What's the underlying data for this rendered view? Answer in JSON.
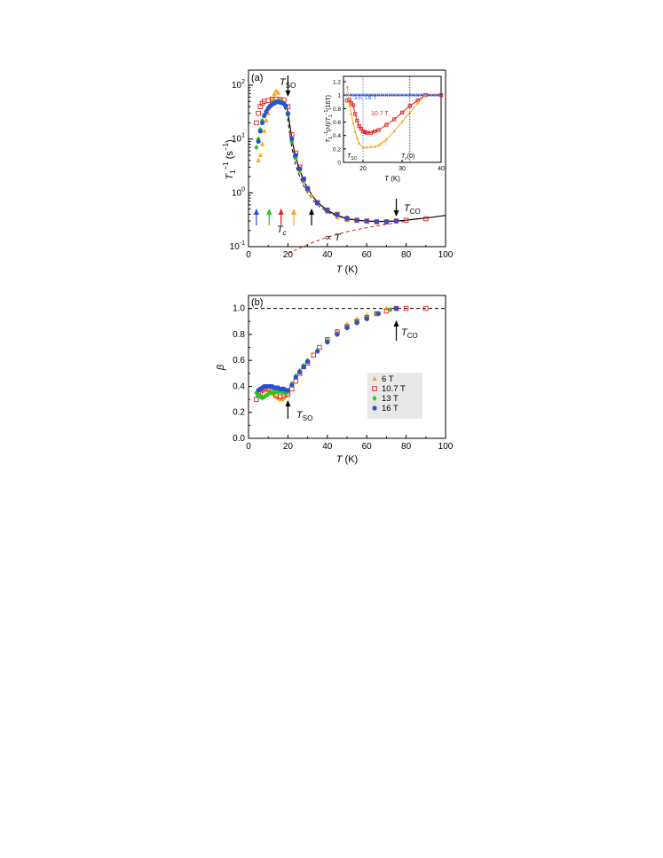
{
  "colors": {
    "6T": "#f5a623",
    "10.7T": "#e02020",
    "13T": "#22c81e",
    "16T": "#2a4fd6",
    "fit_curve": "#000000",
    "linear_term": "#e02020",
    "ref_line": "#000000"
  },
  "chart_data": [
    {
      "type": "scatter",
      "panel_label": "(a)",
      "xlabel": "T (K)",
      "ylabel": "T1−1 (s−1)",
      "xlim": [
        0,
        100
      ],
      "ylim": [
        0.1,
        100
      ],
      "yscale": "log",
      "x_ticks": [
        "0",
        "20",
        "40",
        "60",
        "80",
        "100"
      ],
      "y_ticks": [
        "10-1",
        "100",
        "101",
        "102"
      ],
      "annotations": {
        "tso": "TSO",
        "tco": "TCO",
        "tc": "Tc",
        "propto": "∝ T"
      },
      "series": [
        {
          "name": "6 T",
          "marker": "triangle",
          "color_key": "6T",
          "x": [
            5,
            6,
            7,
            8,
            9,
            10,
            11,
            12,
            13,
            14,
            15,
            16,
            17,
            18,
            20,
            22,
            24,
            26,
            28,
            30,
            32,
            35,
            40,
            45,
            50,
            55
          ],
          "y": [
            4,
            5,
            8,
            14,
            22,
            30,
            42,
            55,
            68,
            78,
            72,
            55,
            52,
            48,
            30,
            9,
            4.4,
            2.5,
            1.6,
            1.1,
            0.86,
            0.62,
            0.44,
            0.35,
            0.31,
            0.3
          ]
        },
        {
          "name": "10.7 T",
          "marker": "square-open",
          "color_key": "10.7T",
          "x": [
            4,
            5,
            6,
            7,
            8,
            10,
            12,
            14,
            16,
            18,
            20,
            22,
            24,
            26,
            28,
            30,
            35,
            40,
            45,
            50,
            55,
            60,
            65,
            70,
            75,
            80,
            90
          ],
          "y": [
            20,
            30,
            40,
            46,
            50,
            52,
            55,
            55,
            54,
            53,
            40,
            12,
            5.5,
            3,
            1.8,
            1.2,
            0.66,
            0.48,
            0.4,
            0.33,
            0.31,
            0.3,
            0.29,
            0.29,
            0.3,
            0.31,
            0.33
          ]
        },
        {
          "name": "13 T",
          "marker": "diamond",
          "color_key": "13T",
          "x": [
            4,
            5,
            6,
            7,
            8,
            9,
            10,
            11,
            12,
            13,
            14,
            15,
            16,
            17,
            18,
            19,
            20,
            22,
            24,
            26,
            28,
            30,
            35,
            40,
            45,
            50,
            55,
            60,
            65,
            70
          ],
          "y": [
            7,
            10,
            15,
            22,
            28,
            33,
            38,
            42,
            45,
            48,
            50,
            51,
            50,
            48,
            45,
            40,
            28,
            9,
            4.5,
            2.6,
            1.7,
            1.15,
            0.64,
            0.46,
            0.38,
            0.33,
            0.31,
            0.3,
            0.29,
            0.29
          ]
        },
        {
          "name": "16 T",
          "marker": "circle",
          "color_key": "16T",
          "x": [
            5,
            6,
            7,
            8,
            9,
            10,
            11,
            12,
            13,
            14,
            15,
            16,
            17,
            18,
            19,
            20,
            22,
            24,
            26,
            28,
            30,
            35,
            40,
            45,
            50,
            55,
            60,
            65,
            70,
            75
          ],
          "y": [
            9,
            14,
            20,
            27,
            32,
            37,
            41,
            44,
            46,
            48,
            49,
            48,
            47,
            45,
            41,
            30,
            10,
            5,
            2.8,
            1.8,
            1.2,
            0.65,
            0.47,
            0.39,
            0.34,
            0.31,
            0.3,
            0.29,
            0.29,
            0.3
          ]
        }
      ],
      "fit_curve": {
        "x": [
          14,
          16,
          18,
          19,
          20,
          21,
          22,
          23,
          24,
          26,
          28,
          30,
          33,
          36,
          40,
          45,
          50,
          55,
          60,
          65,
          70,
          75,
          80,
          85,
          90,
          95,
          100
        ],
        "y": [
          48,
          49,
          47,
          43,
          32,
          18,
          10,
          6.5,
          4.5,
          2.6,
          1.7,
          1.2,
          0.82,
          0.62,
          0.47,
          0.38,
          0.33,
          0.31,
          0.3,
          0.295,
          0.295,
          0.3,
          0.31,
          0.325,
          0.34,
          0.36,
          0.38
        ]
      },
      "dashed_fit": {
        "x": [
          18,
          19,
          20,
          21,
          22,
          23,
          24,
          26,
          28,
          30,
          33,
          36,
          40,
          45,
          50
        ],
        "y": [
          40,
          33,
          22,
          12,
          7,
          4.5,
          3.2,
          2,
          1.35,
          1.0,
          0.72,
          0.56,
          0.44,
          0.37,
          0.33
        ]
      },
      "linear_term": {
        "x": [
          20,
          30,
          40,
          50,
          60,
          70,
          80
        ],
        "y": [
          0.075,
          0.11,
          0.15,
          0.19,
          0.225,
          0.26,
          0.3
        ]
      },
      "arrows_tc": [
        {
          "x": 4,
          "color_key": "16T"
        },
        {
          "x": 10.5,
          "color_key": "13T"
        },
        {
          "x": 16.5,
          "color_key": "10.7T"
        },
        {
          "x": 23,
          "color_key": "6T"
        },
        {
          "x": 32,
          "color_key": "ref_line"
        }
      ],
      "inset": {
        "type": "line",
        "xlabel": "T (K)",
        "ylabel": "T1−1(H)/T1−1(16T)",
        "xlim": [
          15,
          40
        ],
        "ylim": [
          0,
          1.2
        ],
        "x_ticks": [
          "20",
          "30",
          "40"
        ],
        "y_ticks": [
          "0",
          "0.2",
          "0.4",
          "0.6",
          "0.8",
          "1",
          "1.2"
        ],
        "labels": {
          "13_16": "13, 16 T",
          "10_7": "10.7 T",
          "6": "6 T",
          "tso": "TSO",
          "tc0": "Tc(0)"
        },
        "vlines": [
          20,
          32
        ],
        "series": [
          {
            "name": "13, 16 T",
            "color_key": "16T",
            "x": [
              16,
              17,
              18,
              19,
              20,
              21,
              22,
              23,
              24,
              25,
              26,
              27,
              28,
              29,
              30,
              31,
              32,
              33,
              34,
              35,
              36,
              37,
              38,
              39,
              40
            ],
            "y": [
              1,
              1,
              1,
              1,
              1,
              1,
              1,
              1,
              1,
              1,
              1,
              1,
              1,
              1,
              1,
              1,
              1,
              1,
              1,
              1,
              1,
              1,
              1,
              1,
              1
            ]
          },
          {
            "name": "10.7 T",
            "color_key": "10.7T",
            "x": [
              16,
              16.5,
              17,
              17.5,
              18,
              18.5,
              19,
              19.5,
              20,
              20.5,
              21,
              22,
              23,
              24,
              26,
              28,
              30,
              32,
              34,
              36,
              40
            ],
            "y": [
              0.92,
              0.93,
              0.88,
              0.85,
              0.72,
              0.62,
              0.54,
              0.5,
              0.46,
              0.45,
              0.44,
              0.44,
              0.46,
              0.48,
              0.56,
              0.64,
              0.74,
              0.84,
              0.92,
              1.0,
              1.0
            ]
          },
          {
            "name": "6 T",
            "color_key": "6T",
            "x": [
              16,
              16.5,
              17,
              17.5,
              18,
              18.5,
              19,
              20,
              21,
              22,
              23,
              24,
              26,
              28,
              30,
              32,
              34,
              36
            ],
            "y": [
              1.12,
              0.85,
              0.72,
              0.58,
              0.46,
              0.36,
              0.28,
              0.22,
              0.22,
              0.23,
              0.23,
              0.25,
              0.34,
              0.46,
              0.6,
              0.74,
              0.88,
              1.0
            ]
          }
        ]
      }
    },
    {
      "type": "scatter",
      "panel_label": "(b)",
      "xlabel": "T (K)",
      "ylabel": "β",
      "xlim": [
        0,
        100
      ],
      "ylim": [
        0,
        1.1
      ],
      "x_ticks": [
        "0",
        "20",
        "40",
        "60",
        "80",
        "100"
      ],
      "y_ticks": [
        "0.0",
        "0.2",
        "0.4",
        "0.6",
        "0.8",
        "1.0"
      ],
      "annotations": {
        "tso": "TSO",
        "tco": "TCO"
      },
      "ref_line_y": 1.0,
      "series": [
        {
          "name": "6 T",
          "marker": "triangle",
          "color_key": "6T",
          "x": [
            5,
            6,
            7,
            8,
            9,
            10,
            11,
            12,
            13,
            14,
            15,
            16,
            17,
            18,
            19,
            20,
            22,
            24,
            26,
            28,
            30,
            35,
            40,
            45,
            50,
            55,
            60,
            70
          ],
          "y": [
            0.34,
            0.37,
            0.38,
            0.39,
            0.38,
            0.37,
            0.36,
            0.35,
            0.34,
            0.32,
            0.31,
            0.3,
            0.3,
            0.31,
            0.33,
            0.35,
            0.42,
            0.48,
            0.52,
            0.56,
            0.6,
            0.68,
            0.76,
            0.82,
            0.88,
            0.92,
            0.95,
            1.0
          ]
        },
        {
          "name": "10.7 T",
          "marker": "square-open",
          "color_key": "10.7T",
          "x": [
            4,
            5,
            6,
            7,
            8,
            10,
            12,
            14,
            16,
            18,
            20,
            22,
            24,
            26,
            28,
            30,
            33,
            36,
            40,
            45,
            50,
            55,
            60,
            65,
            70,
            75,
            80,
            90
          ],
          "y": [
            0.3,
            0.33,
            0.35,
            0.37,
            0.38,
            0.38,
            0.36,
            0.33,
            0.32,
            0.33,
            0.34,
            0.38,
            0.44,
            0.5,
            0.55,
            0.58,
            0.64,
            0.7,
            0.76,
            0.82,
            0.86,
            0.9,
            0.93,
            0.96,
            0.98,
            1.0,
            1.0,
            1.0
          ]
        },
        {
          "name": "13 T",
          "marker": "diamond",
          "color_key": "13T",
          "x": [
            4,
            5,
            6,
            7,
            8,
            9,
            10,
            11,
            12,
            13,
            14,
            15,
            16,
            17,
            18,
            19,
            20,
            22,
            24,
            26,
            28,
            30,
            35,
            40,
            45,
            50,
            55,
            60,
            65,
            72
          ],
          "y": [
            0.35,
            0.33,
            0.32,
            0.31,
            0.32,
            0.33,
            0.34,
            0.35,
            0.35,
            0.36,
            0.36,
            0.36,
            0.36,
            0.36,
            0.35,
            0.35,
            0.36,
            0.42,
            0.48,
            0.52,
            0.56,
            0.6,
            0.68,
            0.75,
            0.8,
            0.86,
            0.9,
            0.93,
            0.96,
            0.99
          ]
        },
        {
          "name": "16 T",
          "marker": "circle",
          "color_key": "16T",
          "x": [
            5,
            6,
            7,
            8,
            9,
            10,
            11,
            12,
            13,
            14,
            15,
            16,
            17,
            18,
            19,
            20,
            22,
            24,
            26,
            28,
            30,
            35,
            40,
            45,
            50,
            55,
            60,
            66,
            75
          ],
          "y": [
            0.37,
            0.38,
            0.39,
            0.4,
            0.4,
            0.4,
            0.4,
            0.4,
            0.39,
            0.39,
            0.39,
            0.38,
            0.38,
            0.38,
            0.37,
            0.37,
            0.41,
            0.47,
            0.51,
            0.55,
            0.59,
            0.67,
            0.74,
            0.8,
            0.85,
            0.89,
            0.92,
            0.96,
            1.0
          ]
        }
      ],
      "legend": [
        "6 T",
        "10.7 T",
        "13 T",
        "16 T"
      ],
      "legend_position": "inside-right"
    }
  ]
}
